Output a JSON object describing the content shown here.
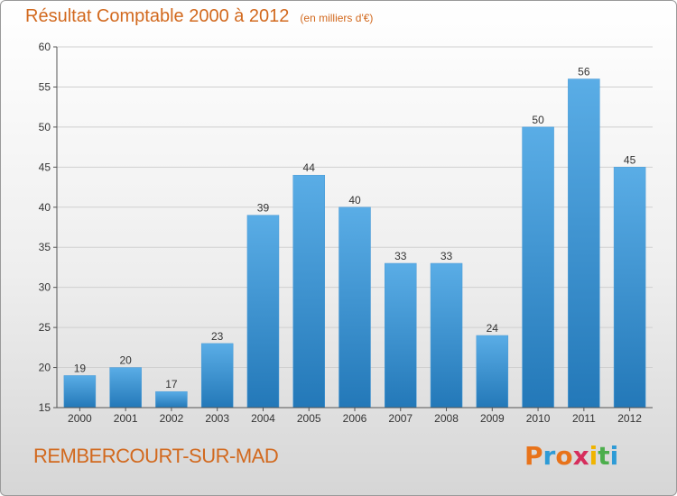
{
  "header": {
    "title": "Résultat Comptable 2000 à 2012",
    "subtitle": "(en milliers d'€)"
  },
  "footer": {
    "commune": "REMBERCOURT-SUR-MAD",
    "logo_text": "Proxiti",
    "logo_colors": [
      "#e8731a",
      "#2e9bd6",
      "#e8731a",
      "#d62e5c",
      "#f0b400",
      "#4cae4c",
      "#2e9bd6"
    ]
  },
  "colors": {
    "bar_top": "#5aade6",
    "bar_bottom": "#2378b8",
    "title": "#d2691e"
  },
  "chart_data": {
    "type": "bar",
    "title": "Résultat Comptable 2000 à 2012",
    "subtitle": "(en milliers d'€)",
    "categories": [
      "2000",
      "2001",
      "2002",
      "2003",
      "2004",
      "2005",
      "2006",
      "2007",
      "2008",
      "2009",
      "2010",
      "2011",
      "2012"
    ],
    "values": [
      19,
      20,
      17,
      23,
      39,
      44,
      40,
      33,
      33,
      24,
      50,
      56,
      45
    ],
    "ylim": [
      15,
      60
    ],
    "yticks": [
      15,
      20,
      25,
      30,
      35,
      40,
      45,
      50,
      55,
      60
    ],
    "xlabel": "",
    "ylabel": "",
    "grid": true
  }
}
